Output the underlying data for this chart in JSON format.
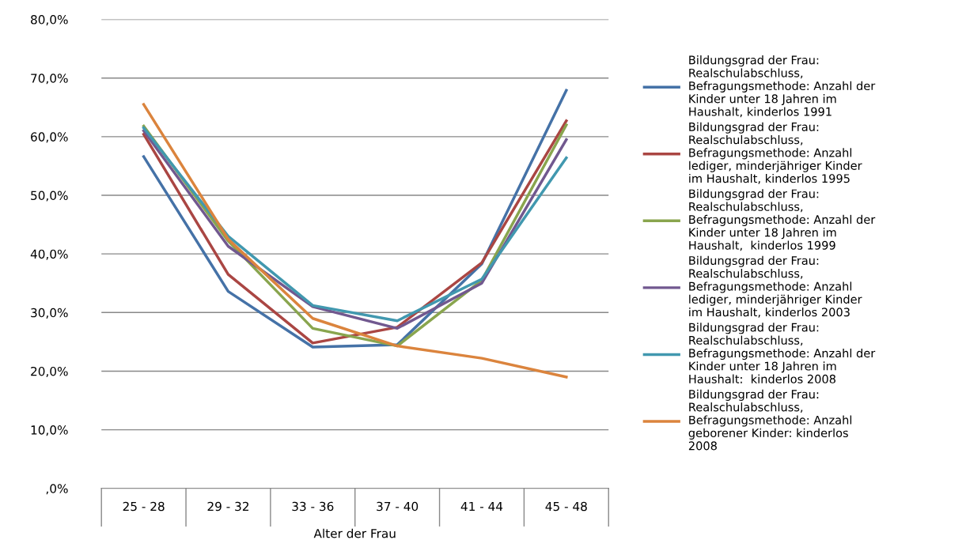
{
  "chart_data": {
    "type": "line",
    "xlabel": "Alter der Frau",
    "categories": [
      "25 - 28",
      "29 - 32",
      "33 - 36",
      "37 - 40",
      "41 - 44",
      "45 - 48"
    ],
    "series": [
      {
        "name": "Bildungsgrad der Frau: Realschulabschluss, Befragungsmethode: Anzahl der Kinder unter 18 Jahren im Haushalt, kinderlos 1991",
        "color": "#4572a7",
        "values": [
          56.6,
          33.6,
          24.1,
          24.5,
          38.3,
          67.9
        ]
      },
      {
        "name": "Bildungsgrad der Frau: Realschulabschluss, Befragungsmethode: Anzahl lediger, minderjähriger Kinder im Haushalt, kinderlos 1995",
        "color": "#aa4643",
        "values": [
          60.4,
          36.5,
          24.8,
          27.5,
          38.5,
          62.7
        ]
      },
      {
        "name": "Bildungsgrad der Frau: Realschulabschluss, Befragungsmethode: Anzahl der Kinder unter 18 Jahren im Haushalt,  kinderlos 1999",
        "color": "#89a54e",
        "values": [
          61.8,
          42.2,
          27.3,
          24.3,
          35.5,
          62.0
        ]
      },
      {
        "name": "Bildungsgrad der Frau: Realschulabschluss, Befragungsmethode: Anzahl lediger, minderjähriger Kinder im Haushalt, kinderlos 2003",
        "color": "#71588f",
        "values": [
          61.0,
          41.3,
          31.0,
          27.3,
          35.0,
          59.5
        ]
      },
      {
        "name": "Bildungsgrad der Frau: Realschulabschluss, Befragungsmethode: Anzahl der Kinder unter 18 Jahren im Haushalt:  kinderlos 2008",
        "color": "#4198af",
        "values": [
          61.5,
          43.0,
          31.2,
          28.6,
          35.7,
          56.4
        ]
      },
      {
        "name": "Bildungsgrad der Frau: Realschulabschluss, Befragungsmethode: Anzahl geborener Kinder: kinderlos 2008",
        "color": "#db843d",
        "values": [
          65.5,
          42.5,
          29.0,
          24.3,
          22.2,
          19.0
        ]
      }
    ],
    "ylim": [
      0,
      80
    ],
    "yticks": [
      {
        "value": 0,
        "label": ",0%"
      },
      {
        "value": 10,
        "label": "10,0%"
      },
      {
        "value": 20,
        "label": "20,0%"
      },
      {
        "value": 30,
        "label": "30,0%"
      },
      {
        "value": 40,
        "label": "40,0%"
      },
      {
        "value": 50,
        "label": "50,0%"
      },
      {
        "value": 60,
        "label": "60,0%"
      },
      {
        "value": 70,
        "label": "70,0%"
      },
      {
        "value": 80,
        "label": "80,0%"
      }
    ],
    "grid": "y",
    "legend": "right",
    "marker": "none",
    "line_style": "solid"
  }
}
